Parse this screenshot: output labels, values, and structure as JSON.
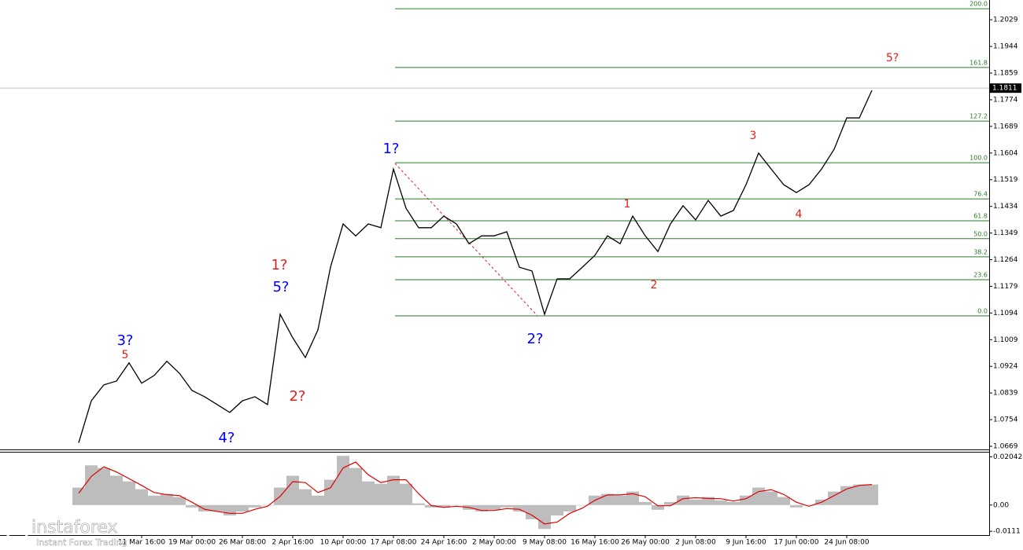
{
  "chart_data": [
    {
      "type": "line",
      "color": "#000000",
      "categories": [
        null,
        null,
        null,
        null,
        null,
        "11 Mar 16:00",
        null,
        null,
        null,
        "19 Mar 00:00",
        null,
        null,
        null,
        "26 Mar 08:00",
        null,
        null,
        null,
        "2 Apr 16:00",
        null,
        null,
        null,
        "10 Apr 00:00",
        null,
        null,
        null,
        "17 Apr 08:00",
        null,
        null,
        null,
        "24 Apr 16:00",
        null,
        null,
        null,
        "2 May 00:00",
        null,
        null,
        null,
        "9 May 08:00",
        null,
        null,
        null,
        "16 May 16:00",
        null,
        null,
        null,
        "26 May 00:00",
        null,
        null,
        null,
        "2 Jun 08:00",
        null,
        null,
        null,
        "9 Jun 16:00",
        null,
        null,
        null,
        "17 Jun 00:00",
        null,
        null,
        null,
        "24 Jun 08:00",
        null,
        null
      ],
      "values": [
        1.068,
        1.0814,
        1.0865,
        1.0877,
        1.0935,
        1.087,
        1.0895,
        1.094,
        1.0902,
        1.0847,
        1.0827,
        1.0802,
        1.0777,
        1.0814,
        1.0827,
        1.0802,
        1.109,
        1.1015,
        1.0952,
        1.104,
        1.124,
        1.1378,
        1.134,
        1.1378,
        1.1366,
        1.1553,
        1.1428,
        1.1366,
        1.1366,
        1.1403,
        1.1378,
        1.1315,
        1.134,
        1.134,
        1.1353,
        1.124,
        1.1228,
        1.109,
        1.1203,
        1.1203,
        1.124,
        1.1278,
        1.134,
        1.1315,
        1.1403,
        1.134,
        1.129,
        1.1378,
        1.1436,
        1.1391,
        1.1453,
        1.1403,
        1.1421,
        1.1503,
        1.1604,
        1.1553,
        1.1503,
        1.1478,
        1.1503,
        1.1553,
        1.1616,
        1.1716,
        1.1716,
        1.1804
      ],
      "ylim": [
        1.0659,
        1.2092
      ],
      "yticks": [
        1.2029,
        1.1944,
        1.1859,
        1.1774,
        1.1689,
        1.1604,
        1.1519,
        1.1434,
        1.1349,
        1.1264,
        1.1179,
        1.1094,
        1.1009,
        1.0924,
        1.0839,
        1.0754,
        1.0669
      ],
      "current_price": 1.1811,
      "fib_color": "#2a7a2a",
      "fib_levels": [
        {
          "label": "200.0",
          "value": 1.2064
        },
        {
          "label": "161.8",
          "value": 1.1877
        },
        {
          "label": "127.2",
          "value": 1.1706
        },
        {
          "label": "100.0",
          "value": 1.1573
        },
        {
          "label": "76.4",
          "value": 1.1458
        },
        {
          "label": "61.8",
          "value": 1.1388
        },
        {
          "label": "50.0",
          "value": 1.1331
        },
        {
          "label": "38.2",
          "value": 1.1273
        },
        {
          "label": "23.6",
          "value": 1.12
        },
        {
          "label": "0.0",
          "value": 1.1085
        }
      ],
      "annotations": [
        {
          "text": "3?",
          "color": "#0000ff"
        },
        {
          "text": "5",
          "color": "#e02020"
        },
        {
          "text": "4?",
          "color": "#0000ff"
        },
        {
          "text": "1?",
          "color": "#e02020"
        },
        {
          "text": "5?",
          "color": "#0000ff"
        },
        {
          "text": "2?",
          "color": "#e02020"
        },
        {
          "text": "1?",
          "color": "#0000ff"
        },
        {
          "text": "2?",
          "color": "#0000ff"
        },
        {
          "text": "1",
          "color": "#e02020"
        },
        {
          "text": "2",
          "color": "#e02020"
        },
        {
          "text": "3",
          "color": "#e02020"
        },
        {
          "text": "4",
          "color": "#e02020"
        },
        {
          "text": "5?",
          "color": "#e02020"
        }
      ]
    },
    {
      "type": "bar",
      "ylim": [
        -0.0127,
        0.0222
      ],
      "yticks": [
        0.02042,
        {
          "value": 0,
          "label": "0.00"
        },
        -0.0111
      ],
      "series": [
        {
          "type": "bar",
          "color": "#bdbdbd",
          "values": [
            0.0074,
            0.0168,
            0.0157,
            0.0124,
            0.01,
            0.0067,
            0.004,
            0.0047,
            0.0034,
            -0.001,
            -0.0027,
            -0.0027,
            -0.0044,
            -0.0027,
            -0.001,
            0,
            0.0074,
            0.0124,
            0.0067,
            0.004,
            0.0107,
            0.0208,
            0.0157,
            0.01,
            0.009,
            0.0124,
            0.009,
            0.0007,
            -0.001,
            -0.001,
            0,
            -0.002,
            -0.0027,
            -0.002,
            -0.001,
            -0.0027,
            -0.006,
            -0.0101,
            -0.0044,
            -0.0027,
            0,
            0.004,
            0.0047,
            0.004,
            0.0057,
            0.0013,
            -0.002,
            0.0013,
            0.004,
            0.0023,
            0.0034,
            0.002,
            0.0013,
            0.004,
            0.0074,
            0.0057,
            0.0034,
            -0.001,
            0,
            0.0023,
            0.0057,
            0.008,
            0.0087,
            0.0087
          ]
        },
        {
          "type": "line",
          "color": "#e00000",
          "values": [
            0.005,
            0.0121,
            0.0162,
            0.014,
            0.0112,
            0.0083,
            0.0053,
            0.0044,
            0.004,
            0.0012,
            -0.0018,
            -0.0027,
            -0.0035,
            -0.0035,
            -0.0018,
            -0.0005,
            0.0037,
            0.0099,
            0.0095,
            0.0053,
            0.0073,
            0.0157,
            0.0182,
            0.0128,
            0.0095,
            0.0107,
            0.0107,
            0.0048,
            -0.0002,
            -0.001,
            -0.0005,
            -0.001,
            -0.0023,
            -0.0023,
            -0.0015,
            -0.0018,
            -0.0043,
            -0.008,
            -0.0072,
            -0.0035,
            -0.0013,
            0.002,
            0.0043,
            0.0043,
            0.0048,
            0.0035,
            -0.0003,
            -0.0003,
            0.0027,
            0.0031,
            0.0028,
            0.0027,
            0.0017,
            0.0027,
            0.0057,
            0.0065,
            0.0045,
            0.0012,
            -0.0005,
            0.0012,
            0.004,
            0.0068,
            0.0083,
            0.0087
          ]
        }
      ]
    }
  ],
  "branding": {
    "name": "instaforex",
    "tagline": "Instant Forex Trading"
  }
}
